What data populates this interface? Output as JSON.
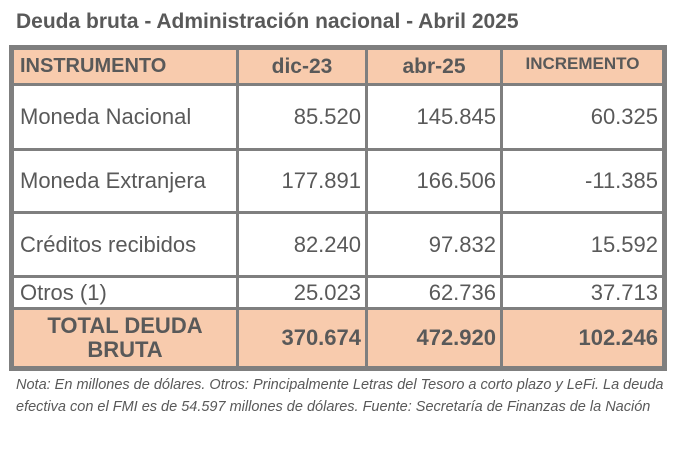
{
  "title": "Deuda bruta - Administración nacional - Abril 2025",
  "table": {
    "headers": [
      "INSTRUMENTO",
      "dic-23",
      "abr-25",
      "INCREMENTO"
    ],
    "rows": [
      {
        "label": "Moneda  Nacional",
        "dic23": "85.520",
        "abr25": "145.845",
        "incremento": "60.325"
      },
      {
        "label": "Moneda Extranjera",
        "dic23": "177.891",
        "abr25": "166.506",
        "incremento": "-11.385"
      },
      {
        "label": "Créditos recibidos",
        "dic23": "82.240",
        "abr25": "97.832",
        "incremento": "15.592"
      },
      {
        "label": "Otros (1)",
        "dic23": "25.023",
        "abr25": "62.736",
        "incremento": "37.713"
      }
    ],
    "total": {
      "label_line1": "TOTAL DEUDA",
      "label_line2": "BRUTA",
      "dic23": "370.674",
      "abr25": "472.920",
      "incremento": "102.246"
    }
  },
  "note": "Nota: En millones de dólares. Otros: Principalmente Letras del Tesoro a corto plazo y LeFi. La deuda  efectiva con el FMI es de 54.597 millones de dólares. Fuente: Secretaría de Finanzas de la Nación",
  "colors": {
    "header_bg": "#f8cbad",
    "text": "#595959",
    "border": "#7f7f7f"
  }
}
